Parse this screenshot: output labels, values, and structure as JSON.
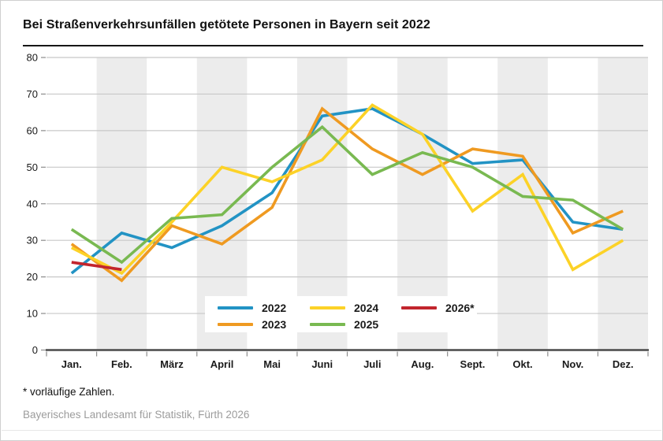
{
  "title": "Bei Straßenverkehrsunfällen getötete Personen in Bayern seit 2022",
  "footnote": "* vorläufige Zahlen.",
  "source": "Bayerisches Landesamt für Statistik, Fürth 2026",
  "colors": {
    "band": "#ececec",
    "grid": "#c8c8c8",
    "tick": "#8c8c8c",
    "axis": "#4a4a4a",
    "text": "#1a1a1a",
    "source_text": "#9c9c9c"
  },
  "chart_data": {
    "type": "line",
    "title": "Bei Straßenverkehrsunfällen getötete Personen in Bayern seit 2022",
    "xlabel": "",
    "ylabel": "",
    "categories": [
      "Jan.",
      "Feb.",
      "März",
      "April",
      "Mai",
      "Juni",
      "Juli",
      "Aug.",
      "Sept.",
      "Okt.",
      "Nov.",
      "Dez."
    ],
    "ylim": [
      0,
      80
    ],
    "ytick_step": 10,
    "grid": true,
    "shaded_bands": "alternating month columns shaded (Feb., April, Juni, Aug., Okt., Dez.)",
    "legend_position": "inside-bottom-center",
    "series": [
      {
        "name": "2022",
        "color": "#2293c4",
        "values": [
          21,
          32,
          28,
          34,
          43,
          64,
          66,
          59,
          51,
          52,
          35,
          33
        ]
      },
      {
        "name": "2023",
        "color": "#ef9a21",
        "values": [
          29,
          19,
          34,
          29,
          39,
          66,
          55,
          48,
          55,
          53,
          32,
          38
        ]
      },
      {
        "name": "2024",
        "color": "#fcd227",
        "values": [
          28,
          21,
          35,
          50,
          46,
          52,
          67,
          59,
          38,
          48,
          22,
          30
        ]
      },
      {
        "name": "2025",
        "color": "#79b951",
        "values": [
          33,
          24,
          36,
          37,
          50,
          61,
          48,
          54,
          50,
          42,
          41,
          33
        ]
      },
      {
        "name": "2026*",
        "color": "#c2252d",
        "values": [
          24,
          22,
          null,
          null,
          null,
          null,
          null,
          null,
          null,
          null,
          null,
          null
        ]
      }
    ]
  }
}
